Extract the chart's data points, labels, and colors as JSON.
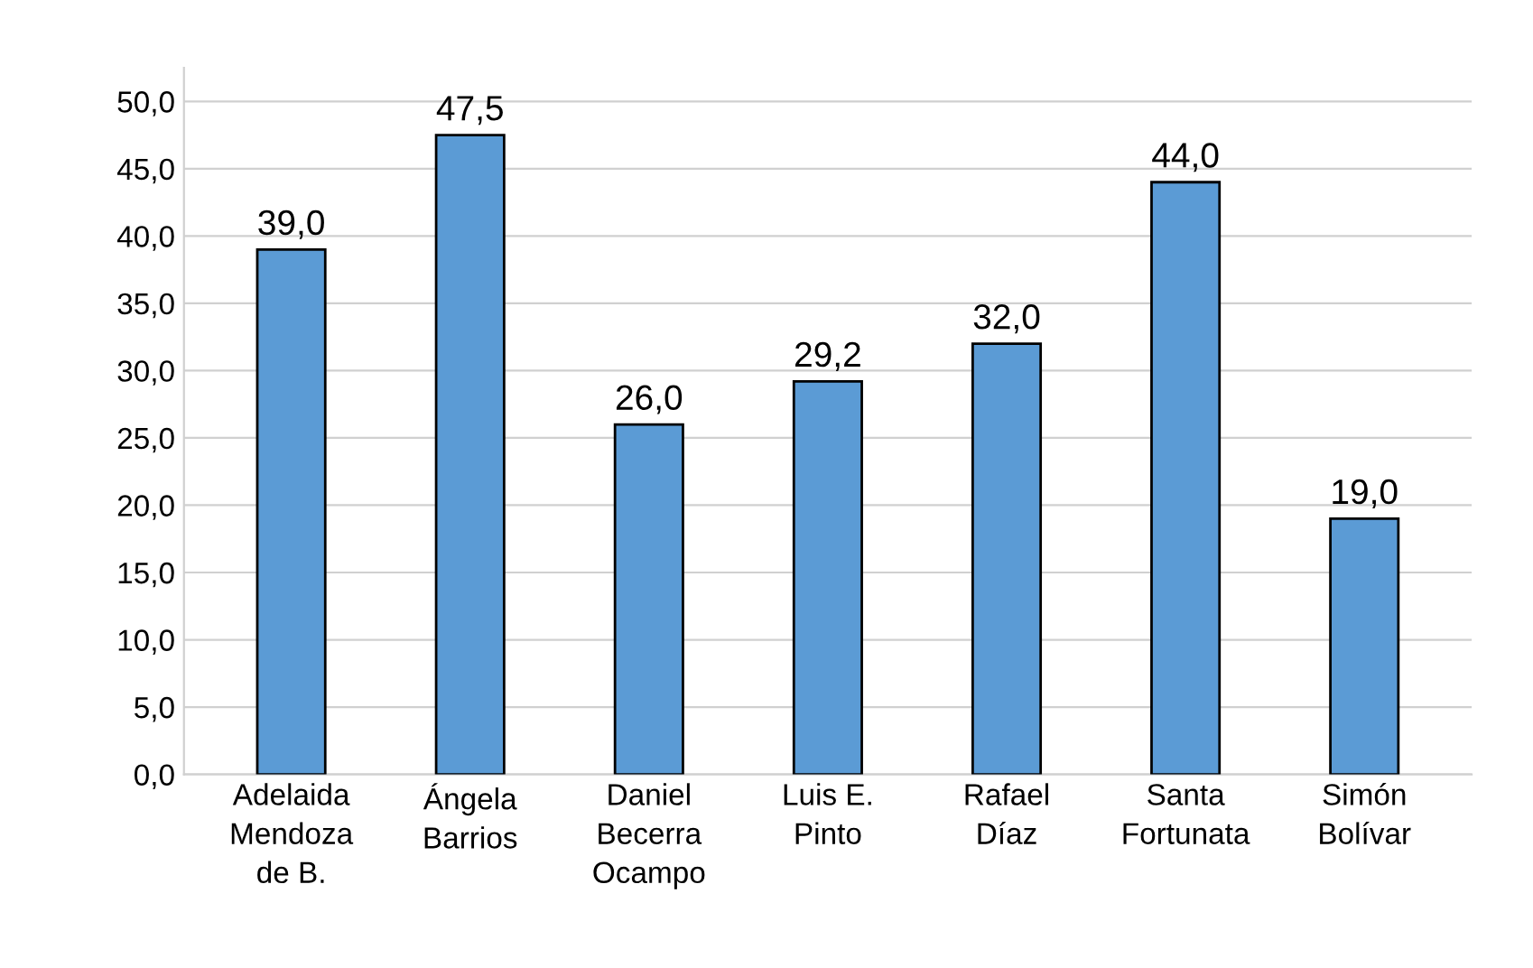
{
  "chart_data": {
    "type": "bar",
    "categories": [
      "Adelaida\nMendoza\nde B.",
      "Ángela\nBarrios",
      "Daniel\nBecerra\nOcampo",
      "Luis E.\nPinto",
      "Rafael\nDíaz",
      "Santa\nFortunata",
      "Simón\nBolívar"
    ],
    "values": [
      39.0,
      47.5,
      26.0,
      29.2,
      32.0,
      44.0,
      19.0
    ],
    "value_labels": [
      "39,0",
      "47,5",
      "26,0",
      "29,2",
      "32,0",
      "44,0",
      "19,0"
    ],
    "color": "#5b9bd5",
    "ylim": [
      0,
      52.5
    ],
    "yticks": [
      {
        "value": 0,
        "label": "0,0"
      },
      {
        "value": 5,
        "label": "5,0"
      },
      {
        "value": 10,
        "label": "10,0"
      },
      {
        "value": 15,
        "label": "15,0"
      },
      {
        "value": 20,
        "label": "20,0"
      },
      {
        "value": 25,
        "label": "25,0"
      },
      {
        "value": 30,
        "label": "30,0"
      },
      {
        "value": 35,
        "label": "35,0"
      },
      {
        "value": 40,
        "label": "40,0"
      },
      {
        "value": 45,
        "label": "45,0"
      },
      {
        "value": 50,
        "label": "50,0"
      }
    ],
    "grid": "y"
  }
}
